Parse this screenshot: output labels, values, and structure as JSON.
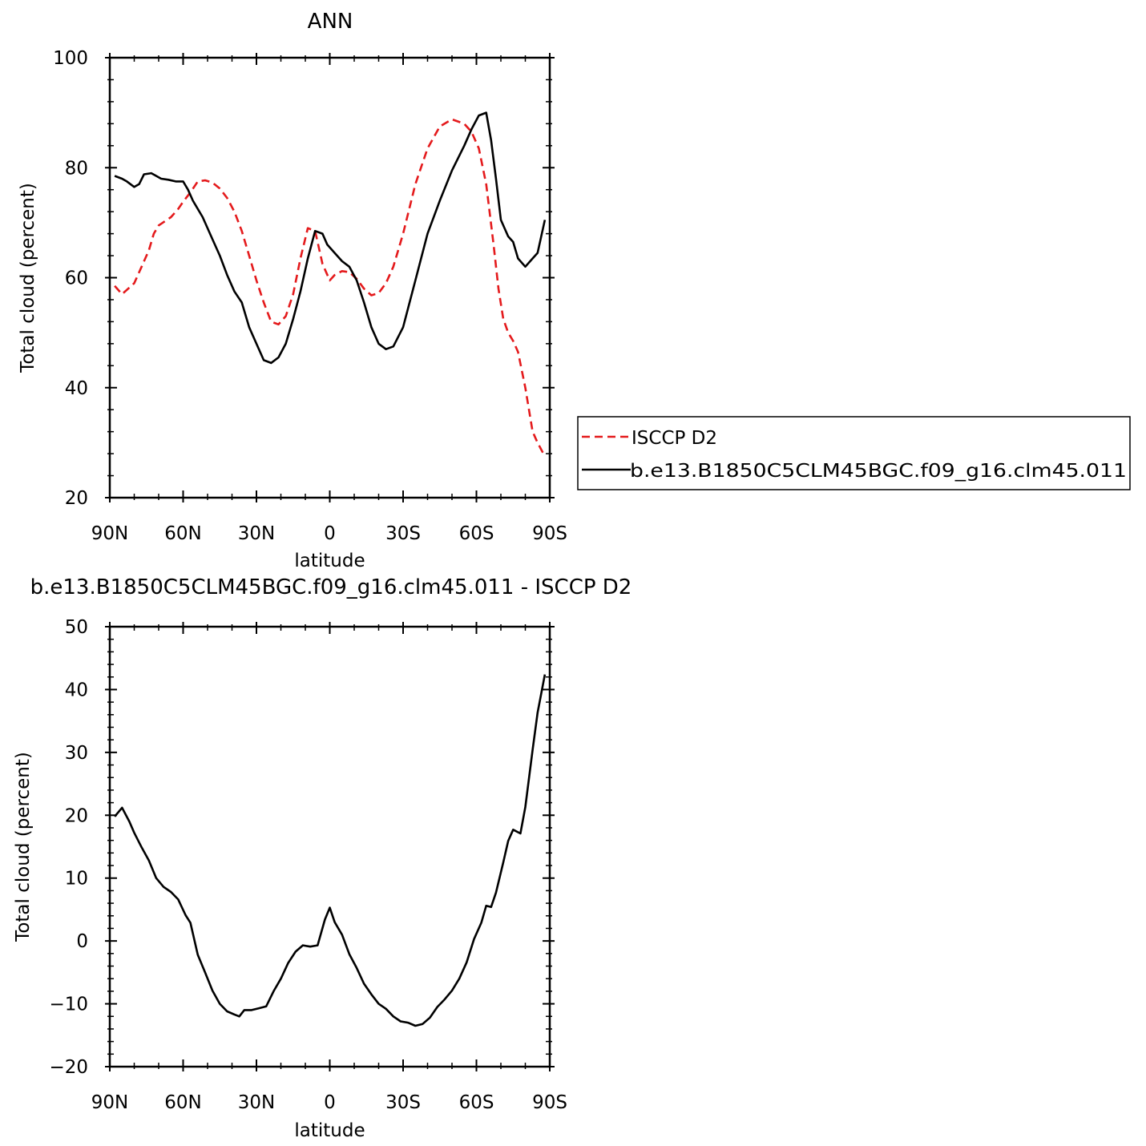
{
  "chart_data": [
    {
      "type": "line",
      "title": "ANN",
      "xlabel": "latitude",
      "ylabel": "Total cloud (percent)",
      "xlim": [
        -90,
        90
      ],
      "ylim": [
        20,
        100
      ],
      "x_ticks": [
        -90,
        -60,
        -30,
        0,
        30,
        60,
        90
      ],
      "x_tick_labels": [
        "90N",
        "60N",
        "30N",
        "0",
        "30S",
        "60S",
        "90S"
      ],
      "y_ticks": [
        20,
        40,
        60,
        80,
        100
      ],
      "y_tick_labels": [
        "20",
        "40",
        "60",
        "80",
        "100"
      ],
      "legend_placement": "right",
      "series": [
        {
          "name": "ISCCP D2",
          "color": "#e41a1c",
          "dash": "dashed",
          "x": [
            -88,
            -85,
            -80,
            -77,
            -74,
            -72,
            -70,
            -65,
            -62,
            -60,
            -57,
            -54,
            -51,
            -48,
            -45,
            -42,
            -39,
            -36,
            -33,
            -30,
            -27,
            -24,
            -21,
            -18,
            -15,
            -12,
            -9,
            -6,
            -3,
            0,
            2,
            5,
            8,
            11,
            14,
            17,
            20,
            23,
            26,
            30,
            35,
            40,
            45,
            50,
            55,
            58,
            61,
            64,
            67,
            69,
            71,
            73,
            75,
            77,
            80,
            83,
            85,
            88
          ],
          "y": [
            58.5,
            57,
            59,
            62,
            65,
            68,
            69.5,
            71,
            72.5,
            73.8,
            75.5,
            77.5,
            77.7,
            77.3,
            76.2,
            74.5,
            72,
            68.5,
            64,
            59.5,
            55.5,
            52,
            51.5,
            53,
            57,
            63.5,
            69,
            68.5,
            62.5,
            59.5,
            60.5,
            61.2,
            61,
            59.8,
            58,
            56.8,
            57.2,
            59,
            62,
            68,
            77,
            83.5,
            87.5,
            88.8,
            88,
            86.5,
            83.5,
            77,
            66,
            58,
            52.5,
            50,
            48.5,
            46.5,
            40,
            32,
            30,
            27.5
          ]
        },
        {
          "name": "b.e13.B1850C5CLM45BGC.f09_g16.clm45.011",
          "color": "#000000",
          "dash": "solid",
          "x": [
            -88,
            -85,
            -83,
            -80,
            -78,
            -76,
            -73,
            -71,
            -69,
            -66,
            -63,
            -60,
            -58,
            -56,
            -52,
            -48,
            -45,
            -42,
            -39,
            -36,
            -33,
            -30,
            -27,
            -24,
            -21,
            -18,
            -15,
            -12,
            -9,
            -6,
            -3,
            -1,
            2,
            5,
            8,
            11,
            14,
            17,
            20,
            23,
            26,
            30,
            35,
            40,
            45,
            50,
            55,
            58,
            61,
            64,
            66,
            68,
            70,
            73,
            75,
            77,
            80,
            83,
            85,
            88
          ],
          "y": [
            78.5,
            78,
            77.5,
            76.5,
            77,
            78.8,
            79,
            78.5,
            78,
            77.8,
            77.5,
            77.5,
            76,
            74,
            71,
            67,
            64,
            60.5,
            57.5,
            55.5,
            51,
            48,
            45,
            44.5,
            45.5,
            48,
            52.5,
            57.5,
            63.5,
            68.5,
            68,
            66,
            64.5,
            63,
            62,
            59.5,
            55.5,
            51,
            48,
            47,
            47.5,
            51,
            59.5,
            68,
            74,
            79.5,
            84,
            87,
            89.5,
            90,
            85,
            78,
            70.5,
            67.5,
            66.5,
            63.5,
            62,
            63.5,
            64.5,
            70.5
          ]
        }
      ]
    },
    {
      "type": "line",
      "title": "b.e13.B1850C5CLM45BGC.f09_g16.clm45.011 - ISCCP D2",
      "xlabel": "latitude",
      "ylabel": "Total cloud (percent)",
      "xlim": [
        -90,
        90
      ],
      "ylim": [
        -20,
        50
      ],
      "x_ticks": [
        -90,
        -60,
        -30,
        0,
        30,
        60,
        90
      ],
      "x_tick_labels": [
        "90N",
        "60N",
        "30N",
        "0",
        "30S",
        "60S",
        "90S"
      ],
      "y_ticks": [
        -20,
        -10,
        0,
        10,
        20,
        30,
        40,
        50
      ],
      "y_tick_labels": [
        "−20",
        "−10",
        "0",
        "10",
        "20",
        "30",
        "40",
        "50"
      ],
      "series": [
        {
          "color": "#000000",
          "dash": "solid",
          "x": [
            -88,
            -85,
            -82,
            -80,
            -77,
            -74,
            -71,
            -68,
            -65,
            -62,
            -59,
            -57,
            -54,
            -51,
            -48,
            -45,
            -42,
            -39,
            -37,
            -35,
            -32,
            -29,
            -26,
            -23,
            -20,
            -17,
            -14,
            -11,
            -8,
            -5,
            -2,
            0,
            2,
            5,
            8,
            11,
            14,
            17,
            20,
            23,
            26,
            29,
            32,
            35,
            38,
            41,
            44,
            47,
            50,
            53,
            56,
            59,
            62,
            64,
            66,
            68,
            71,
            73,
            75,
            78,
            80,
            83,
            85,
            88
          ],
          "y": [
            19.8,
            21.2,
            19,
            17.2,
            14.9,
            12.8,
            10,
            8.6,
            7.8,
            6.6,
            4.1,
            2.9,
            -2.2,
            -5,
            -7.9,
            -10,
            -11.2,
            -11.7,
            -12,
            -11,
            -11,
            -10.7,
            -10.4,
            -8,
            -6,
            -3.5,
            -1.7,
            -0.7,
            -0.9,
            -0.7,
            3.4,
            5.3,
            3,
            1,
            -2.1,
            -4.3,
            -6.8,
            -8.5,
            -10,
            -10.8,
            -12,
            -12.8,
            -13,
            -13.5,
            -13.2,
            -12.2,
            -10.5,
            -9.3,
            -7.9,
            -6,
            -3.4,
            0.3,
            2.9,
            5.6,
            5.4,
            7.7,
            12.5,
            15.9,
            17.7,
            17.1,
            21.3,
            30.4,
            36.3,
            42.4
          ]
        }
      ]
    }
  ]
}
